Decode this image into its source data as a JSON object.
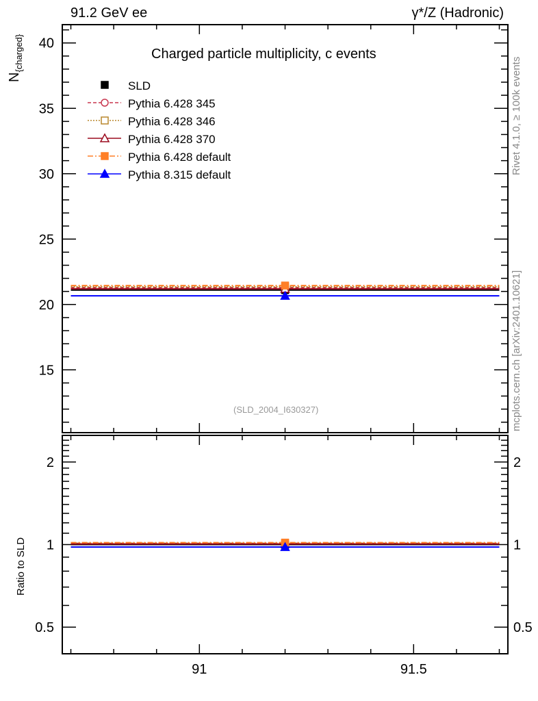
{
  "header": {
    "left": "91.2 GeV ee",
    "right": "γ*/Z (Hadronic)"
  },
  "side": {
    "rivet": "Rivet 4.1.0, ≥ 100k events",
    "mcplots": "mcplots.cern.ch [arXiv:2401.10621]"
  },
  "chart_data": {
    "type": "scatter",
    "title": "Charged particle multiplicity, c events",
    "ylabel_main": "N",
    "ylabel_sub": "{charged}",
    "ylabel_ratio": "Ratio to SLD",
    "analysis_tag": "(SLD_2004_I630327)",
    "xlim": [
      90.68,
      91.72
    ],
    "ylim": [
      10.2,
      41.4
    ],
    "ratio_ylim": [
      0.4,
      2.5
    ],
    "x_ticks": [
      {
        "v": 91,
        "label": "91"
      },
      {
        "v": 91.5,
        "label": "91.5"
      }
    ],
    "y_ticks": [
      {
        "v": 15,
        "label": "15"
      },
      {
        "v": 20,
        "label": "20"
      },
      {
        "v": 25,
        "label": "25"
      },
      {
        "v": 30,
        "label": "30"
      },
      {
        "v": 35,
        "label": "35"
      },
      {
        "v": 40,
        "label": "40"
      }
    ],
    "ratio_ticks": [
      {
        "v": 0.5,
        "label": "0.5"
      },
      {
        "v": 1,
        "label": "1"
      },
      {
        "v": 2,
        "label": "2"
      }
    ],
    "bin": [
      90.7,
      91.7
    ],
    "x": 91.2,
    "legend_position": "top-left",
    "series": [
      {
        "name": "SLD",
        "value": 21.1,
        "color": "#000000",
        "marker": "square",
        "dash": "none"
      },
      {
        "name": "Pythia 6.428 345",
        "value": 21.3,
        "color": "#c8374f",
        "marker": "circle-open",
        "dash": "5,3"
      },
      {
        "name": "Pythia 6.428 346",
        "value": 21.35,
        "color": "#b8862b",
        "marker": "square-open",
        "dash": "2,2"
      },
      {
        "name": "Pythia 6.428 370",
        "value": 21.2,
        "color": "#9b0a1e",
        "marker": "triangle-open",
        "dash": "none"
      },
      {
        "name": "Pythia 6.428 default",
        "value": 21.45,
        "color": "#ff7f27",
        "marker": "square",
        "dash": "8,3,2,3"
      },
      {
        "name": "Pythia 8.315 default",
        "value": 20.66,
        "color": "#0000ff",
        "marker": "triangle",
        "dash": "none"
      }
    ]
  }
}
